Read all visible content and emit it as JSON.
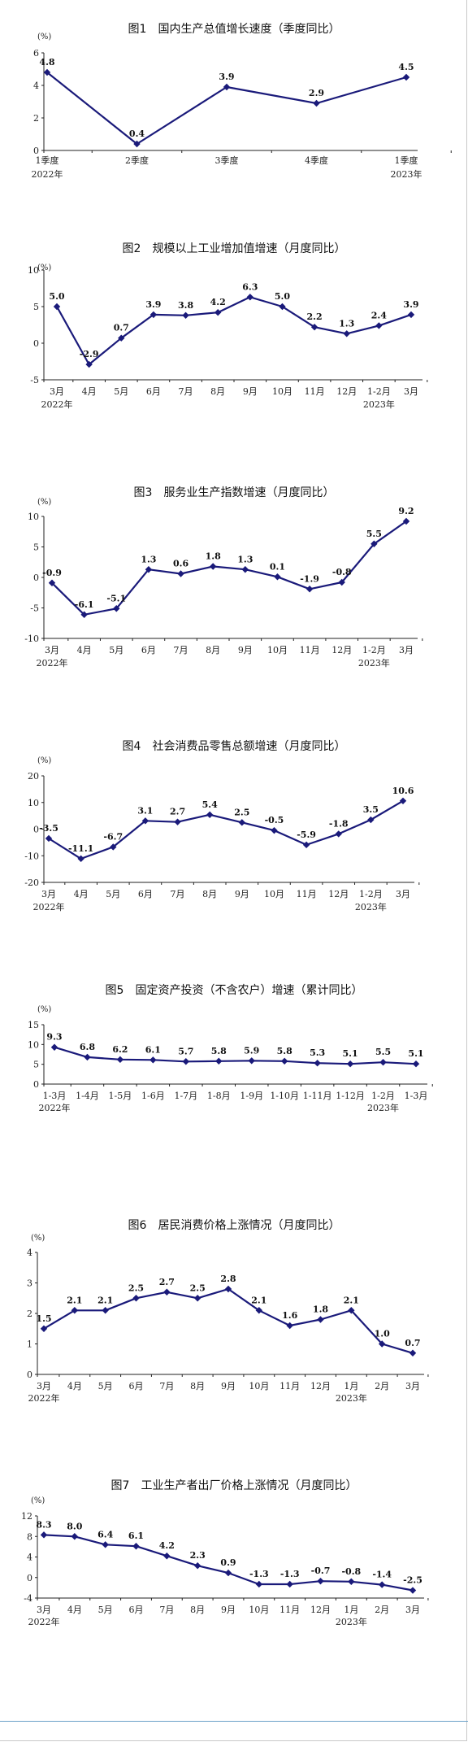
{
  "chart_data": [
    {
      "type": "line",
      "title": "图1　国内生产总值增长速度（季度同比）",
      "unit": "(%)",
      "categories": [
        "1季度",
        "2季度",
        "3季度",
        "4季度",
        "1季度"
      ],
      "year_labels": [
        {
          "index": 0,
          "text": "2022年"
        },
        {
          "index": 4,
          "text": "2023年"
        }
      ],
      "values": [
        4.8,
        0.4,
        3.9,
        2.9,
        4.5
      ],
      "value_labels": [
        "4.8",
        "0.4",
        "3.9",
        "2.9",
        "4.5"
      ],
      "ylim": [
        0,
        6
      ],
      "yticks": [
        0,
        2,
        4,
        6
      ]
    },
    {
      "type": "line",
      "title": "图2　规模以上工业增加值增速（月度同比）",
      "unit": "(%)",
      "categories": [
        "3月",
        "4月",
        "5月",
        "6月",
        "7月",
        "8月",
        "9月",
        "10月",
        "11月",
        "12月",
        "1-2月",
        "3月"
      ],
      "year_labels": [
        {
          "index": 0,
          "text": "2022年"
        },
        {
          "index": 10,
          "text": "2023年"
        }
      ],
      "values": [
        5.0,
        -2.9,
        0.7,
        3.9,
        3.8,
        4.2,
        6.3,
        5.0,
        2.2,
        1.3,
        2.4,
        3.9
      ],
      "value_labels": [
        "5.0",
        "-2.9",
        "0.7",
        "3.9",
        "3.8",
        "4.2",
        "6.3",
        "5.0",
        "2.2",
        "1.3",
        "2.4",
        "3.9"
      ],
      "ylim": [
        -5,
        10
      ],
      "yticks": [
        -5,
        0,
        5,
        10
      ]
    },
    {
      "type": "line",
      "title": "图3　服务业生产指数增速（月度同比）",
      "unit": "(%)",
      "categories": [
        "3月",
        "4月",
        "5月",
        "6月",
        "7月",
        "8月",
        "9月",
        "10月",
        "11月",
        "12月",
        "1-2月",
        "3月"
      ],
      "year_labels": [
        {
          "index": 0,
          "text": "2022年"
        },
        {
          "index": 10,
          "text": "2023年"
        }
      ],
      "values": [
        -0.9,
        -6.1,
        -5.1,
        1.3,
        0.6,
        1.8,
        1.3,
        0.1,
        -1.9,
        -0.8,
        5.5,
        9.2
      ],
      "value_labels": [
        "-0.9",
        "-6.1",
        "-5.1",
        "1.3",
        "0.6",
        "1.8",
        "1.3",
        "0.1",
        "-1.9",
        "-0.8",
        "5.5",
        "9.2"
      ],
      "ylim": [
        -10,
        10
      ],
      "yticks": [
        -10,
        -5,
        0,
        5,
        10
      ]
    },
    {
      "type": "line",
      "title": "图4　社会消费品零售总额增速（月度同比）",
      "unit": "(%)",
      "categories": [
        "3月",
        "4月",
        "5月",
        "6月",
        "7月",
        "8月",
        "9月",
        "10月",
        "11月",
        "12月",
        "1-2月",
        "3月"
      ],
      "year_labels": [
        {
          "index": 0,
          "text": "2022年"
        },
        {
          "index": 10,
          "text": "2023年"
        }
      ],
      "values": [
        -3.5,
        -11.1,
        -6.7,
        3.1,
        2.7,
        5.4,
        2.5,
        -0.5,
        -5.9,
        -1.8,
        3.5,
        10.6
      ],
      "value_labels": [
        "-3.5",
        "-11.1",
        "-6.7",
        "3.1",
        "2.7",
        "5.4",
        "2.5",
        "-0.5",
        "-5.9",
        "-1.8",
        "3.5",
        "10.6"
      ],
      "ylim": [
        -20,
        20
      ],
      "yticks": [
        -20,
        -10,
        0,
        10,
        20
      ]
    },
    {
      "type": "line",
      "title": "图5　固定资产投资（不含农户）增速（累计同比）",
      "unit": "(%)",
      "categories": [
        "1-3月",
        "1-4月",
        "1-5月",
        "1-6月",
        "1-7月",
        "1-8月",
        "1-9月",
        "1-10月",
        "1-11月",
        "1-12月",
        "1-2月",
        "1-3月"
      ],
      "year_labels": [
        {
          "index": 0,
          "text": "2022年"
        },
        {
          "index": 10,
          "text": "2023年"
        }
      ],
      "values": [
        9.3,
        6.8,
        6.2,
        6.1,
        5.7,
        5.8,
        5.9,
        5.8,
        5.3,
        5.1,
        5.5,
        5.1
      ],
      "value_labels": [
        "9.3",
        "6.8",
        "6.2",
        "6.1",
        "5.7",
        "5.8",
        "5.9",
        "5.8",
        "5.3",
        "5.1",
        "5.5",
        "5.1"
      ],
      "ylim": [
        0,
        15
      ],
      "yticks": [
        0,
        5,
        10,
        15
      ]
    },
    {
      "type": "line",
      "title": "图6　居民消费价格上涨情况（月度同比）",
      "unit": "(%)",
      "categories": [
        "3月",
        "4月",
        "5月",
        "6月",
        "7月",
        "8月",
        "9月",
        "10月",
        "11月",
        "12月",
        "1月",
        "2月",
        "3月"
      ],
      "year_labels": [
        {
          "index": 0,
          "text": "2022年"
        },
        {
          "index": 10,
          "text": "2023年"
        }
      ],
      "values": [
        1.5,
        2.1,
        2.1,
        2.5,
        2.7,
        2.5,
        2.8,
        2.1,
        1.6,
        1.8,
        2.1,
        1.0,
        0.7
      ],
      "value_labels": [
        "1.5",
        "2.1",
        "2.1",
        "2.5",
        "2.7",
        "2.5",
        "2.8",
        "2.1",
        "1.6",
        "1.8",
        "2.1",
        "1.0",
        "0.7"
      ],
      "ylim": [
        0,
        4
      ],
      "yticks": [
        0,
        1,
        2,
        3,
        4
      ]
    },
    {
      "type": "line",
      "title": "图7　工业生产者出厂价格上涨情况（月度同比）",
      "unit": "(%)",
      "categories": [
        "3月",
        "4月",
        "5月",
        "6月",
        "7月",
        "8月",
        "9月",
        "10月",
        "11月",
        "12月",
        "1月",
        "2月",
        "3月"
      ],
      "year_labels": [
        {
          "index": 0,
          "text": "2022年"
        },
        {
          "index": 10,
          "text": "2023年"
        }
      ],
      "values": [
        8.3,
        8.0,
        6.4,
        6.1,
        4.2,
        2.3,
        0.9,
        -1.3,
        -1.3,
        -0.7,
        -0.8,
        -1.4,
        -2.5
      ],
      "value_labels": [
        "8.3",
        "8.0",
        "6.4",
        "6.1",
        "4.2",
        "2.3",
        "0.9",
        "-1.3",
        "-1.3",
        "-0.7",
        "-0.8",
        "-1.4",
        "-2.5"
      ],
      "ylim": [
        -4,
        12
      ],
      "yticks": [
        -4,
        0,
        4,
        8,
        12
      ]
    }
  ]
}
